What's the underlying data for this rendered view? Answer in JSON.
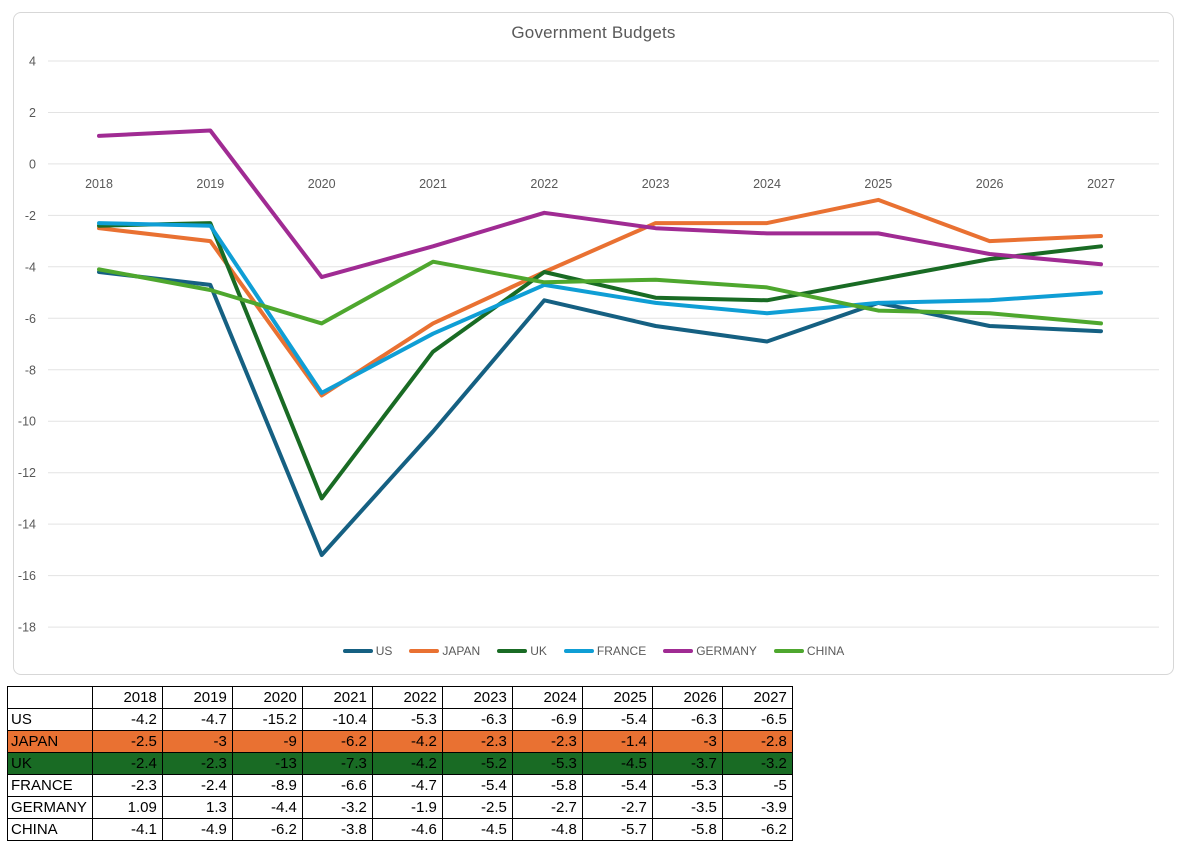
{
  "chart_data": {
    "type": "line",
    "title": "Government Budgets",
    "x": [
      "2018",
      "2019",
      "2020",
      "2021",
      "2022",
      "2023",
      "2024",
      "2025",
      "2026",
      "2027"
    ],
    "series": [
      {
        "name": "US",
        "color": "#156082",
        "values": [
          -4.2,
          -4.7,
          -15.2,
          -10.4,
          -5.3,
          -6.3,
          -6.9,
          -5.4,
          -6.3,
          -6.5
        ]
      },
      {
        "name": "JAPAN",
        "color": "#E97132",
        "values": [
          -2.5,
          -3,
          -9,
          -6.2,
          -4.2,
          -2.3,
          -2.3,
          -1.4,
          -3,
          -2.8
        ]
      },
      {
        "name": "UK",
        "color": "#196B24",
        "values": [
          -2.4,
          -2.3,
          -13,
          -7.3,
          -4.2,
          -5.2,
          -5.3,
          -4.5,
          -3.7,
          -3.2
        ]
      },
      {
        "name": "FRANCE",
        "color": "#0F9ED5",
        "values": [
          -2.3,
          -2.4,
          -8.9,
          -6.6,
          -4.7,
          -5.4,
          -5.8,
          -5.4,
          -5.3,
          -5
        ]
      },
      {
        "name": "GERMANY",
        "color": "#A02B93",
        "values": [
          1.09,
          1.3,
          -4.4,
          -3.2,
          -1.9,
          -2.5,
          -2.7,
          -2.7,
          -3.5,
          -3.9
        ]
      },
      {
        "name": "CHINA",
        "color": "#4EA72E",
        "values": [
          -4.1,
          -4.9,
          -6.2,
          -3.8,
          -4.6,
          -4.5,
          -4.8,
          -5.7,
          -5.8,
          -6.2
        ]
      }
    ],
    "y_ticks": [
      4,
      2,
      0,
      -2,
      -4,
      -6,
      -8,
      -10,
      -12,
      -14,
      -16,
      -18
    ],
    "ylim": [
      -19,
      5
    ],
    "grid": true,
    "legend_position": "bottom",
    "colors": {
      "grid": "#e3e3e3",
      "axis_text": "#595959",
      "title_text": "#595959",
      "frame_border": "#d7d7d7"
    }
  },
  "table": {
    "columns": [
      "",
      "2018",
      "2019",
      "2020",
      "2021",
      "2022",
      "2023",
      "2024",
      "2025",
      "2026",
      "2027"
    ],
    "rows": [
      {
        "label": "US",
        "bg": "",
        "values": [
          "-4.2",
          "-4.7",
          "-15.2",
          "-10.4",
          "-5.3",
          "-6.3",
          "-6.9",
          "-5.4",
          "-6.3",
          "-6.5"
        ]
      },
      {
        "label": "JAPAN",
        "bg": "#E97132",
        "values": [
          "-2.5",
          "-3",
          "-9",
          "-6.2",
          "-4.2",
          "-2.3",
          "-2.3",
          "-1.4",
          "-3",
          "-2.8"
        ]
      },
      {
        "label": "UK",
        "bg": "#196B24",
        "values": [
          "-2.4",
          "-2.3",
          "-13",
          "-7.3",
          "-4.2",
          "-5.2",
          "-5.3",
          "-4.5",
          "-3.7",
          "-3.2"
        ]
      },
      {
        "label": "FRANCE",
        "bg": "",
        "values": [
          "-2.3",
          "-2.4",
          "-8.9",
          "-6.6",
          "-4.7",
          "-5.4",
          "-5.8",
          "-5.4",
          "-5.3",
          "-5"
        ]
      },
      {
        "label": "GERMANY",
        "bg": "",
        "values": [
          "1.09",
          "1.3",
          "-4.4",
          "-3.2",
          "-1.9",
          "-2.5",
          "-2.7",
          "-2.7",
          "-3.5",
          "-3.9"
        ]
      },
      {
        "label": "CHINA",
        "bg": "",
        "values": [
          "-4.1",
          "-4.9",
          "-6.2",
          "-3.8",
          "-4.6",
          "-4.5",
          "-4.8",
          "-5.7",
          "-5.8",
          "-6.2"
        ]
      }
    ]
  }
}
